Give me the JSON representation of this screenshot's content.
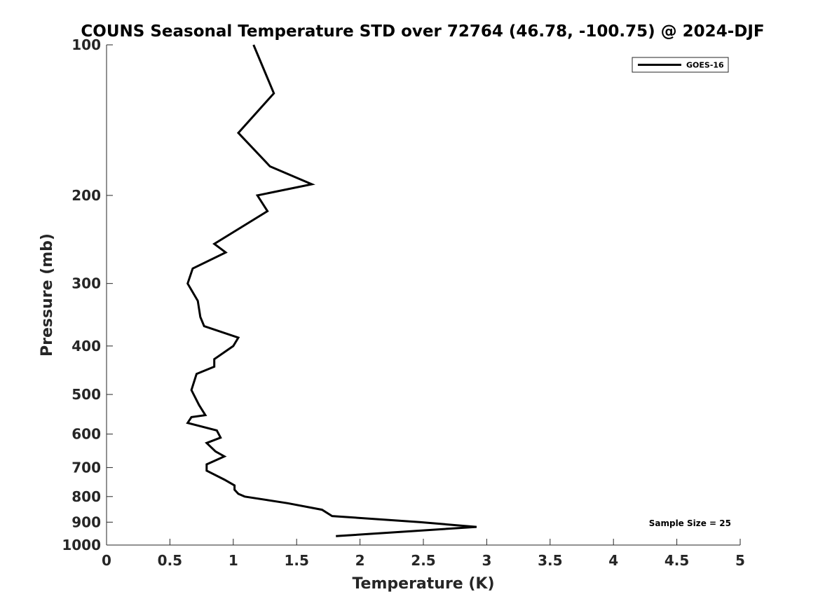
{
  "chart_data": {
    "type": "line",
    "title": "COUNS Seasonal Temperature STD over 72764 (46.78, -100.75) @ 2024-DJF",
    "xlabel": "Temperature (K)",
    "ylabel": "Pressure (mb)",
    "xlim": [
      0,
      5
    ],
    "ylim": [
      100,
      1000
    ],
    "yscale": "log",
    "y_reversed": true,
    "xticks": [
      0,
      0.5,
      1,
      1.5,
      2,
      2.5,
      3,
      3.5,
      4,
      4.5,
      5
    ],
    "xtick_labels": [
      "0",
      "0.5",
      "1",
      "1.5",
      "2",
      "2.5",
      "3",
      "3.5",
      "4",
      "4.5",
      "5"
    ],
    "yticks": [
      100,
      200,
      300,
      400,
      500,
      600,
      700,
      800,
      900,
      1000
    ],
    "ytick_labels": [
      "100",
      "200",
      "300",
      "400",
      "500",
      "600",
      "700",
      "800",
      "900",
      "1000"
    ],
    "grid": false,
    "legend_position": "top-right",
    "series": [
      {
        "name": "GOES-16",
        "color": "#000000",
        "points": [
          [
            1.16,
            100
          ],
          [
            1.32,
            125
          ],
          [
            1.04,
            150
          ],
          [
            1.29,
            175
          ],
          [
            1.62,
            190
          ],
          [
            1.19,
            200
          ],
          [
            1.27,
            215
          ],
          [
            0.85,
            250
          ],
          [
            0.94,
            260
          ],
          [
            0.68,
            280
          ],
          [
            0.64,
            300
          ],
          [
            0.72,
            325
          ],
          [
            0.74,
            350
          ],
          [
            0.77,
            365
          ],
          [
            1.04,
            385
          ],
          [
            1.0,
            400
          ],
          [
            0.85,
            425
          ],
          [
            0.85,
            440
          ],
          [
            0.71,
            455
          ],
          [
            0.67,
            490
          ],
          [
            0.73,
            525
          ],
          [
            0.78,
            550
          ],
          [
            0.67,
            555
          ],
          [
            0.64,
            570
          ],
          [
            0.87,
            590
          ],
          [
            0.9,
            610
          ],
          [
            0.79,
            625
          ],
          [
            0.86,
            650
          ],
          [
            0.93,
            665
          ],
          [
            0.79,
            690
          ],
          [
            0.79,
            710
          ],
          [
            0.93,
            740
          ],
          [
            1.01,
            760
          ],
          [
            1.01,
            775
          ],
          [
            1.04,
            790
          ],
          [
            1.09,
            800
          ],
          [
            1.43,
            825
          ],
          [
            1.7,
            850
          ],
          [
            1.78,
            875
          ],
          [
            2.47,
            900
          ],
          [
            2.92,
            920
          ],
          [
            1.81,
            960
          ]
        ]
      }
    ],
    "annotations": [
      {
        "text": "Sample Size = 25",
        "position": "bottom-right"
      }
    ]
  }
}
